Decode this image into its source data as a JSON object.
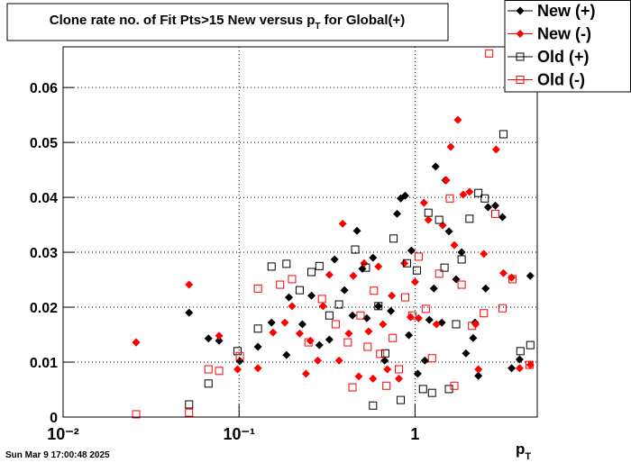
{
  "chart_data": {
    "type": "scatter",
    "title_parts": [
      "Clone rate no. of Fit Pts>15 New versus p",
      "T",
      " for Global(+)"
    ],
    "xlabel_parts": [
      "p",
      "T"
    ],
    "timestamp": "Sun Mar  9 17:00:48 2025",
    "log_x": true,
    "grid": true,
    "legend": "top-right",
    "xlim": [
      0.01,
      4.95
    ],
    "ylim": [
      0,
      0.0674
    ],
    "xticks": [
      {
        "value": 0.01,
        "label": "10⁻²"
      },
      {
        "value": 0.1,
        "label": "10⁻¹"
      },
      1
    ],
    "yticks": [
      0,
      0.01,
      0.02,
      0.03,
      0.04,
      0.05,
      0.06
    ],
    "series": [
      {
        "name": "New (+)",
        "color": "#000000",
        "marker": "diamond",
        "x": [
          0.026,
          0.052,
          0.067,
          0.077,
          0.101,
          0.128,
          0.153,
          0.186,
          0.192,
          0.229,
          0.258,
          0.286,
          0.326,
          0.349,
          0.397,
          0.441,
          0.468,
          0.502,
          0.532,
          0.577,
          0.619,
          0.672,
          0.729,
          0.791,
          0.829,
          0.879,
          0.922,
          0.954,
          1.036,
          1.137,
          1.206,
          1.279,
          1.309,
          1.42,
          1.488,
          1.559,
          1.712,
          1.84,
          1.947,
          2.14,
          2.19,
          2.29,
          2.52,
          2.6,
          2.86,
          3.14,
          3.54,
          3.93,
          4.52
        ],
        "values": [
          0.0136,
          0.019,
          0.0143,
          0.0139,
          0.0102,
          0.0128,
          0.0172,
          0.0113,
          0.0218,
          0.0169,
          0.0221,
          0.0131,
          0.0141,
          0.0287,
          0.0231,
          0.0185,
          0.0339,
          0.027,
          0.018,
          0.029,
          0.0202,
          0.0103,
          0.0193,
          0.037,
          0.0398,
          0.0403,
          0.0149,
          0.0303,
          0.0079,
          0.0103,
          0.0177,
          0.0234,
          0.0456,
          0.0172,
          0.0431,
          0.0338,
          0.0251,
          0.03,
          0.0116,
          0.0144,
          0.0172,
          0.0075,
          0.0234,
          0.0382,
          0.0385,
          0.0364,
          0.0089,
          0.0105,
          0.0257
        ]
      },
      {
        "name": "New (-)",
        "color": "#ff0000",
        "marker": "diamond",
        "x": [
          0.026,
          0.052,
          0.077,
          0.098,
          0.128,
          0.156,
          0.182,
          0.2,
          0.221,
          0.24,
          0.254,
          0.28,
          0.3,
          0.326,
          0.37,
          0.388,
          0.42,
          0.446,
          0.479,
          0.513,
          0.545,
          0.577,
          0.619,
          0.657,
          0.696,
          0.738,
          0.81,
          0.869,
          0.943,
          1.0,
          1.048,
          1.124,
          1.191,
          1.324,
          1.436,
          1.505,
          1.596,
          1.673,
          1.752,
          1.879,
          2.04,
          2.21,
          2.29,
          2.46,
          2.89,
          3.18,
          3.54,
          3.93,
          4.52
        ],
        "values": [
          0.0136,
          0.0241,
          0.0148,
          0.0087,
          0.0089,
          0.0154,
          0.0172,
          0.0202,
          0.0152,
          0.0079,
          0.0139,
          0.0103,
          0.0202,
          0.0259,
          0.0103,
          0.0352,
          0.0152,
          0.0257,
          0.0074,
          0.028,
          0.0156,
          0.007,
          0.0274,
          0.0169,
          0.0087,
          0.0221,
          0.007,
          0.028,
          0.0182,
          0.0246,
          0.018,
          0.039,
          0.0359,
          0.0169,
          0.0349,
          0.0431,
          0.0492,
          0.0313,
          0.0541,
          0.0405,
          0.041,
          0.0169,
          0.0087,
          0.0297,
          0.0487,
          0.0262,
          0.0254,
          0.0089,
          0.0095
        ]
      },
      {
        "name": "Old (+)",
        "color": "#000000",
        "marker": "square",
        "x": [
          0.052,
          0.067,
          0.098,
          0.128,
          0.153,
          0.186,
          0.221,
          0.258,
          0.286,
          0.326,
          0.37,
          0.457,
          0.526,
          0.577,
          0.619,
          0.678,
          0.755,
          0.829,
          0.9,
          1.024,
          1.11,
          1.191,
          1.249,
          1.371,
          1.47,
          1.559,
          1.712,
          1.84,
          2.04,
          2.29,
          2.49,
          3.18,
          3.97,
          4.52
        ],
        "values": [
          0.0023,
          0.0061,
          0.012,
          0.0161,
          0.0274,
          0.0279,
          0.0231,
          0.0264,
          0.0275,
          0.0185,
          0.0205,
          0.0305,
          0.0272,
          0.0021,
          0.0202,
          0.0116,
          0.0325,
          0.0031,
          0.028,
          0.0267,
          0.0051,
          0.0372,
          0.0044,
          0.0359,
          0.0272,
          0.0051,
          0.0169,
          0.0287,
          0.0361,
          0.0408,
          0.0398,
          0.0515,
          0.012,
          0.0131
        ]
      },
      {
        "name": "Old (-)",
        "color": "#ff0000",
        "marker": "square",
        "x": [
          0.026,
          0.052,
          0.067,
          0.077,
          0.101,
          0.128,
          0.171,
          0.2,
          0.248,
          0.296,
          0.354,
          0.415,
          0.441,
          0.49,
          0.538,
          0.584,
          0.634,
          0.688,
          0.747,
          0.81,
          0.879,
          0.965,
          1.048,
          1.151,
          1.249,
          1.371,
          1.577,
          1.673,
          1.84,
          2.11,
          2.46,
          2.64,
          2.86,
          3.14,
          3.58,
          4.47
        ],
        "values": [
          0.0005,
          0.0008,
          0.0087,
          0.0084,
          0.0111,
          0.0234,
          0.0241,
          0.0251,
          0.0136,
          0.0215,
          0.0169,
          0.0136,
          0.0054,
          0.0185,
          0.0128,
          0.023,
          0.0115,
          0.0057,
          0.0144,
          0.0087,
          0.0218,
          0.0185,
          0.0292,
          0.0197,
          0.0107,
          0.0261,
          0.0398,
          0.0057,
          0.0241,
          0.0166,
          0.0189,
          0.0662,
          0.037,
          0.0198,
          0.0251,
          0.0095
        ]
      }
    ]
  }
}
